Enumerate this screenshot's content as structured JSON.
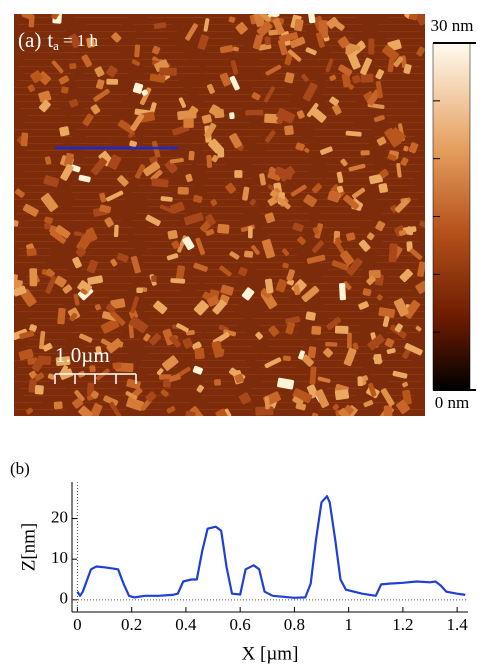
{
  "image_panel": {
    "panel_label": "(a)",
    "annotation": {
      "base": "t",
      "subscript": "a",
      "rest": "= 1 h"
    },
    "scale_bar": "1.0µm",
    "colorbar": {
      "lim": [
        0,
        30
      ],
      "ticks": [
        {
          "value": 0,
          "label": "0 nm"
        },
        5,
        10,
        15,
        20,
        25,
        {
          "value": 30,
          "label": "30 nm"
        }
      ]
    }
  },
  "chart_data": {
    "type": "line",
    "panel_label": "(b)",
    "xlabel": "X [µm]",
    "ylabel": "Z[nm]",
    "color": "#1f3fd6",
    "x": [
      0,
      0.01,
      0.02,
      0.05,
      0.07,
      0.1,
      0.15,
      0.17,
      0.19,
      0.21,
      0.25,
      0.3,
      0.35,
      0.37,
      0.39,
      0.42,
      0.44,
      0.46,
      0.48,
      0.51,
      0.53,
      0.55,
      0.57,
      0.6,
      0.62,
      0.65,
      0.67,
      0.69,
      0.72,
      0.8,
      0.84,
      0.86,
      0.88,
      0.9,
      0.92,
      0.93,
      0.95,
      0.97,
      0.99,
      1.05,
      1.1,
      1.12,
      1.15,
      1.2,
      1.25,
      1.3,
      1.32,
      1.34,
      1.36,
      1.4,
      1.43
    ],
    "values": [
      2,
      1,
      2,
      7.5,
      8.2,
      8,
      7.5,
      4,
      1,
      0.6,
      1,
      1,
      1.2,
      1.5,
      4.5,
      5,
      5,
      12,
      17.5,
      18,
      17,
      8,
      1.5,
      1.3,
      7.5,
      8.5,
      7.5,
      2,
      1,
      0.5,
      0.6,
      4,
      15,
      24,
      25.5,
      24,
      15,
      5,
      2.5,
      1.5,
      1,
      3.8,
      4,
      4.2,
      4.5,
      4.3,
      4.5,
      3.5,
      2,
      1.5,
      1.2
    ],
    "xlim": [
      -0.02,
      1.44
    ],
    "ylim": [
      -3,
      29
    ],
    "xticks": [
      0,
      0.2,
      0.4,
      0.6,
      0.8,
      1,
      1.2,
      1.4
    ],
    "yticks": [
      0,
      10,
      20
    ]
  }
}
